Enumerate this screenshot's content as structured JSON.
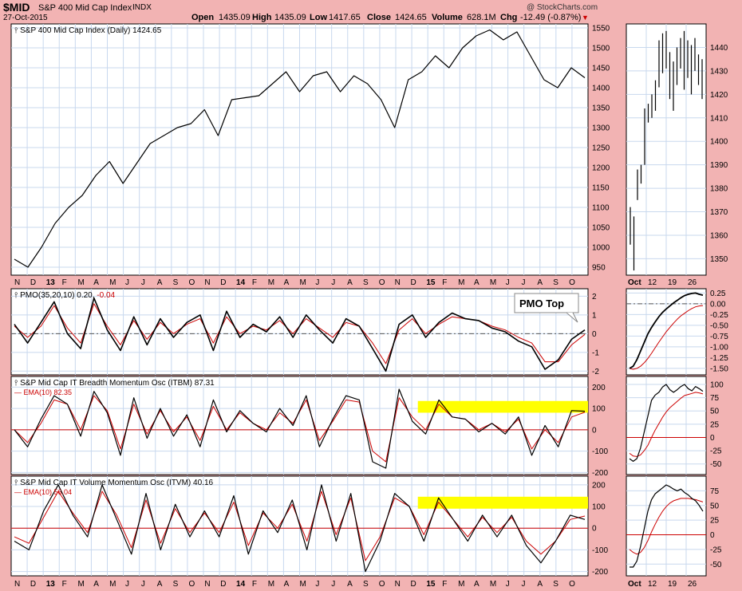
{
  "header": {
    "symbol": "$MID",
    "name": "S&P 400 Mid Cap Index",
    "exchange": "INDX",
    "date": "27-Oct-2015",
    "watermark": "@ StockCharts.com",
    "open_label": "Open",
    "open": "1435.09",
    "high_label": "High",
    "high": "1435.09",
    "low_label": "Low",
    "low": "1417.65",
    "close_label": "Close",
    "close": "1424.65",
    "volume_label": "Volume",
    "volume": "628.1M",
    "chg_label": "Chg",
    "chg": "-12.49 (-0.87%)",
    "chg_arrow": "▼",
    "colors": {
      "background": "#f2b3b3",
      "panel": "#ffffff",
      "grid": "#c8d8ee",
      "price": "#000000",
      "signal": "#cc0000",
      "highlight": "#ffff00"
    }
  },
  "chart_data": [
    {
      "type": "line",
      "id": "price",
      "title": "S&P 400 Mid Cap Index (Daily) 1424.65",
      "x_labels": [
        "N",
        "D",
        "13",
        "F",
        "M",
        "A",
        "M",
        "J",
        "J",
        "A",
        "S",
        "O",
        "N",
        "D",
        "14",
        "F",
        "M",
        "A",
        "M",
        "J",
        "J",
        "A",
        "S",
        "O",
        "N",
        "D",
        "15",
        "F",
        "M",
        "A",
        "M",
        "J",
        "J",
        "A",
        "S",
        "O"
      ],
      "ylim": [
        930,
        1560
      ],
      "y_ticks": [
        950,
        1000,
        1050,
        1100,
        1150,
        1200,
        1250,
        1300,
        1350,
        1400,
        1450,
        1500,
        1550
      ],
      "grid": true,
      "series": [
        {
          "values": [
            970,
            950,
            1000,
            1060,
            1100,
            1130,
            1180,
            1215,
            1160,
            1210,
            1260,
            1280,
            1300,
            1310,
            1345,
            1280,
            1370,
            1375,
            1380,
            1410,
            1440,
            1390,
            1430,
            1440,
            1390,
            1430,
            1410,
            1370,
            1300,
            1420,
            1440,
            1480,
            1450,
            1500,
            1530,
            1545,
            1520,
            1540,
            1480,
            1420,
            1400,
            1450,
            1425
          ]
        }
      ]
    },
    {
      "type": "line",
      "id": "pmo",
      "title": "PMO(35,20,10)",
      "pmo_value": "0.20",
      "signal_value": "-0.04",
      "annotation": "PMO Top",
      "ylim": [
        -2.2,
        2.4
      ],
      "y_ticks": [
        -2,
        -1,
        0,
        1,
        2
      ],
      "series": [
        {
          "name": "PMO(35,20,10)",
          "values": [
            0.5,
            -0.5,
            0.6,
            1.7,
            0.0,
            -0.8,
            1.9,
            0.2,
            -0.9,
            0.9,
            -0.6,
            0.8,
            -0.2,
            0.6,
            1.0,
            -0.9,
            1.2,
            -0.2,
            0.5,
            0.1,
            0.9,
            -0.2,
            1.0,
            0.2,
            -0.5,
            0.8,
            0.4,
            -0.8,
            -2.0,
            0.5,
            1.0,
            -0.2,
            0.6,
            1.1,
            0.8,
            0.7,
            0.3,
            0.1,
            -0.4,
            -0.7,
            -1.9,
            -1.4,
            -0.3,
            0.2
          ]
        },
        {
          "name": "Signal",
          "values": [
            0.4,
            -0.2,
            0.4,
            1.5,
            0.3,
            -0.5,
            1.6,
            0.4,
            -0.6,
            0.7,
            -0.3,
            0.6,
            0.0,
            0.5,
            0.8,
            -0.5,
            0.9,
            0.0,
            0.4,
            0.2,
            0.7,
            0.0,
            0.8,
            0.3,
            -0.2,
            0.6,
            0.4,
            -0.5,
            -1.6,
            0.2,
            0.8,
            0.0,
            0.5,
            0.9,
            0.8,
            0.7,
            0.4,
            0.2,
            -0.2,
            -0.5,
            -1.5,
            -1.5,
            -0.6,
            -0.04
          ]
        }
      ]
    },
    {
      "type": "line",
      "id": "itbm",
      "title": "S&P Mid Cap IT Breadth Momentum Osc (ITBM)",
      "value": "87.31",
      "ema_label": "EMA(10)",
      "ema_value": "82.35",
      "ylim": [
        -210,
        250
      ],
      "y_ticks": [
        -200,
        -100,
        0,
        100,
        200
      ],
      "series": [
        {
          "name": "ITBM",
          "values": [
            0,
            -80,
            50,
            160,
            120,
            -30,
            180,
            80,
            -120,
            150,
            -40,
            100,
            -30,
            70,
            -80,
            140,
            -10,
            90,
            30,
            -10,
            100,
            20,
            160,
            -80,
            50,
            160,
            140,
            -150,
            -180,
            190,
            40,
            -20,
            140,
            60,
            50,
            -10,
            30,
            -20,
            60,
            -120,
            20,
            -80,
            90,
            87
          ]
        },
        {
          "name": "EMA(10)",
          "values": [
            0,
            -60,
            30,
            140,
            120,
            0,
            160,
            90,
            -90,
            120,
            -20,
            90,
            -10,
            60,
            -50,
            110,
            0,
            80,
            30,
            0,
            80,
            30,
            140,
            -50,
            40,
            140,
            130,
            -100,
            -150,
            150,
            60,
            0,
            120,
            60,
            50,
            0,
            30,
            -10,
            50,
            -90,
            0,
            -60,
            60,
            82
          ]
        }
      ],
      "highlight_band": [
        80,
        135
      ]
    },
    {
      "type": "line",
      "id": "itvm",
      "title": "S&P Mid Cap IT Volume Momentum Osc (ITVM)",
      "value": "40.16",
      "ema_label": "EMA(10)",
      "ema_value": "56.04",
      "ylim": [
        -220,
        240
      ],
      "y_ticks": [
        -200,
        -100,
        0,
        100,
        200
      ],
      "series": [
        {
          "name": "ITVM",
          "values": [
            -60,
            -100,
            80,
            200,
            60,
            -40,
            200,
            40,
            -120,
            160,
            -100,
            110,
            -40,
            80,
            -40,
            150,
            -120,
            80,
            -20,
            130,
            -100,
            200,
            -60,
            160,
            -200,
            -60,
            160,
            100,
            -60,
            140,
            40,
            -60,
            60,
            -40,
            60,
            -80,
            -160,
            -60,
            60,
            40
          ]
        },
        {
          "name": "EMA(10)",
          "values": [
            -40,
            -70,
            50,
            170,
            70,
            -20,
            170,
            60,
            -90,
            130,
            -70,
            90,
            -20,
            70,
            -20,
            120,
            -80,
            70,
            0,
            110,
            -60,
            170,
            -30,
            140,
            -150,
            -40,
            140,
            100,
            -30,
            120,
            40,
            -40,
            50,
            -20,
            50,
            -60,
            -120,
            -60,
            40,
            56
          ]
        }
      ],
      "highlight_band": [
        90,
        145
      ]
    },
    {
      "type": "line",
      "id": "detail_price",
      "x_labels": [
        "Oct",
        "12",
        "19",
        "26"
      ],
      "ylim": [
        1343,
        1450
      ],
      "y_ticks": [
        1350,
        1360,
        1370,
        1380,
        1390,
        1400,
        1410,
        1420,
        1430,
        1440
      ],
      "bars": [
        {
          "high": 1372,
          "low": 1356
        },
        {
          "high": 1368,
          "low": 1345
        },
        {
          "high": 1388,
          "low": 1375
        },
        {
          "high": 1390,
          "low": 1382
        },
        {
          "high": 1414,
          "low": 1390
        },
        {
          "high": 1416,
          "low": 1408
        },
        {
          "high": 1420,
          "low": 1410
        },
        {
          "high": 1426,
          "low": 1413
        },
        {
          "high": 1443,
          "low": 1423
        },
        {
          "high": 1446,
          "low": 1429
        },
        {
          "high": 1447,
          "low": 1431
        },
        {
          "high": 1438,
          "low": 1418
        },
        {
          "high": 1434,
          "low": 1413
        },
        {
          "high": 1440,
          "low": 1424
        },
        {
          "high": 1444,
          "low": 1431
        },
        {
          "high": 1447,
          "low": 1422
        },
        {
          "high": 1443,
          "low": 1427
        },
        {
          "high": 1441,
          "low": 1420
        },
        {
          "high": 1444,
          "low": 1430
        },
        {
          "high": 1437,
          "low": 1424
        },
        {
          "high": 1435,
          "low": 1418
        }
      ]
    },
    {
      "type": "line",
      "id": "detail_pmo",
      "ylim": [
        -1.65,
        0.35
      ],
      "y_ticks": [
        -1.5,
        -1.25,
        -1.0,
        -0.75,
        -0.5,
        -0.25,
        0.0,
        0.25
      ],
      "series": [
        {
          "name": "PMO",
          "values": [
            -1.5,
            -1.45,
            -1.3,
            -1.1,
            -0.9,
            -0.7,
            -0.55,
            -0.42,
            -0.3,
            -0.2,
            -0.12,
            -0.05,
            0.02,
            0.08,
            0.14,
            0.19,
            0.22,
            0.24,
            0.25,
            0.22,
            0.2
          ]
        },
        {
          "name": "Signal",
          "values": [
            -1.5,
            -1.52,
            -1.5,
            -1.45,
            -1.37,
            -1.27,
            -1.15,
            -1.02,
            -0.89,
            -0.77,
            -0.65,
            -0.55,
            -0.45,
            -0.36,
            -0.28,
            -0.22,
            -0.16,
            -0.11,
            -0.07,
            -0.05,
            -0.04
          ]
        }
      ]
    },
    {
      "type": "line",
      "id": "detail_itbm",
      "ylim": [
        -70,
        115
      ],
      "y_ticks": [
        -50,
        -25,
        0,
        25,
        50,
        75,
        100
      ],
      "series": [
        {
          "name": "ITBM",
          "values": [
            -40,
            -45,
            -40,
            -20,
            10,
            40,
            70,
            80,
            85,
            95,
            100,
            90,
            85,
            90,
            96,
            100,
            92,
            88,
            96,
            92,
            87
          ]
        },
        {
          "name": "EMA(10)",
          "values": [
            -30,
            -35,
            -36,
            -33,
            -25,
            -15,
            0,
            14,
            26,
            38,
            48,
            56,
            62,
            68,
            74,
            79,
            81,
            83,
            85,
            84,
            82
          ]
        }
      ]
    },
    {
      "type": "line",
      "id": "detail_itvm",
      "ylim": [
        -70,
        100
      ],
      "y_ticks": [
        -50,
        -25,
        0,
        25,
        50,
        75
      ],
      "series": [
        {
          "name": "ITVM",
          "values": [
            -55,
            -55,
            -45,
            -20,
            10,
            40,
            60,
            70,
            75,
            80,
            85,
            82,
            78,
            75,
            78,
            72,
            68,
            62,
            58,
            50,
            40
          ]
        },
        {
          "name": "EMA(10)",
          "values": [
            -25,
            -30,
            -33,
            -30,
            -22,
            -10,
            5,
            18,
            30,
            40,
            48,
            54,
            58,
            60,
            62,
            62,
            62,
            61,
            60,
            58,
            56
          ]
        }
      ]
    }
  ]
}
